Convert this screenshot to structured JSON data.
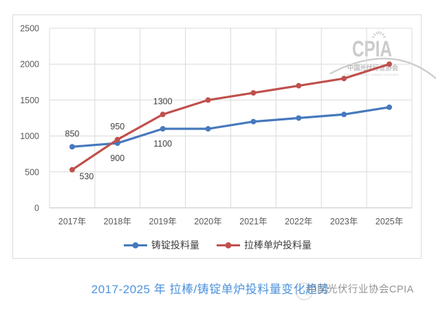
{
  "chart_data": {
    "type": "line",
    "categories": [
      "2017年",
      "2018年",
      "2019年",
      "2020年",
      "2021年",
      "2022年",
      "2023年",
      "2025年"
    ],
    "series": [
      {
        "name": "铸锭投料量",
        "color": "#4679BD",
        "values": [
          850,
          900,
          1100,
          1100,
          1200,
          1250,
          1300,
          1400
        ]
      },
      {
        "name": "拉棒单炉投料量",
        "color": "#C0504D",
        "values": [
          530,
          950,
          1300,
          1500,
          1600,
          1700,
          1800,
          2000
        ]
      }
    ],
    "ylim": [
      0,
      2500
    ],
    "yticks": [
      0,
      500,
      1000,
      1500,
      2000,
      2500
    ],
    "grid": true,
    "legend_position": "bottom",
    "point_labels": [
      {
        "series": 0,
        "index": 0,
        "text": "850",
        "placement": "above"
      },
      {
        "series": 0,
        "index": 1,
        "text": "900",
        "placement": "below"
      },
      {
        "series": 0,
        "index": 2,
        "text": "1100",
        "placement": "below"
      },
      {
        "series": 1,
        "index": 0,
        "text": "530",
        "placement": "below-right"
      },
      {
        "series": 1,
        "index": 1,
        "text": "950",
        "placement": "above"
      },
      {
        "series": 1,
        "index": 2,
        "text": "1300",
        "placement": "above"
      }
    ]
  },
  "caption": {
    "text": "2017-2025 年  拉棒/铸锭单炉投料量变化趋势",
    "color": "#4C92DC"
  },
  "watermark": {
    "logo_acronym": "CPIA",
    "logo_cn": "中国光伏行业协会",
    "logo_en": "China Photovoltaic Industry Association",
    "corner_text": "中国光伏行业协会CPIA"
  },
  "style": {
    "grid_color": "#D9D9D9",
    "axis_color": "#BFBFBF",
    "tick_text_color": "#595959",
    "data_label_color": "#3F3F3F",
    "watermark_gray": "#C9C9C9"
  }
}
